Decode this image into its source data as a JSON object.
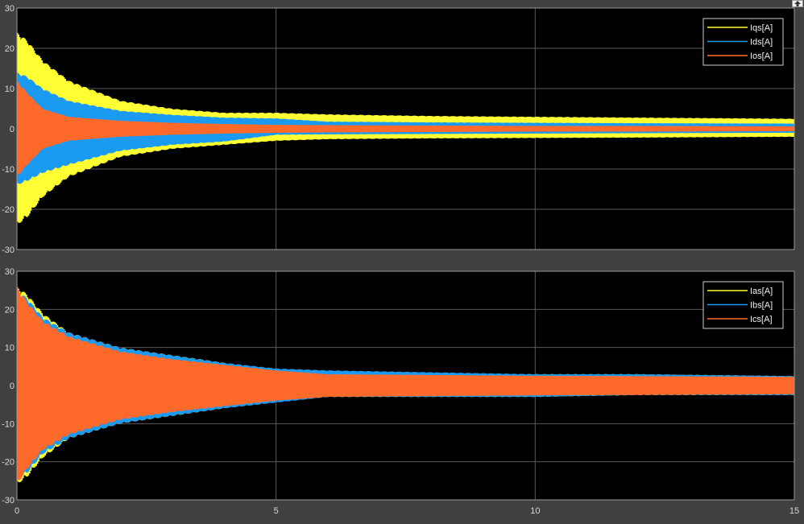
{
  "window": {
    "restore_button_icon": "restore-arrow-icon"
  },
  "colors": {
    "background": "#404040",
    "plot_bg": "#000000",
    "grid": "#5a5a5a",
    "axis_text": "#d9d9d9",
    "yellow": "#ffff33",
    "blue": "#1a9af0",
    "orange": "#ff6a2a"
  },
  "chart_data": [
    {
      "type": "line",
      "title": "",
      "xlabel": "",
      "ylabel": "",
      "xlim": [
        0,
        15
      ],
      "ylim": [
        -30,
        30
      ],
      "xticks": [
        0,
        5,
        10,
        15
      ],
      "yticks": [
        -30,
        -20,
        -10,
        0,
        10,
        20,
        30
      ],
      "xtick_labels": [
        "",
        "",
        "",
        ""
      ],
      "ytick_labels": [
        "-30",
        "-20",
        "-10",
        "0",
        "10",
        "20",
        "30"
      ],
      "grid": true,
      "legend_position": "top-right",
      "series": [
        {
          "name": "Iqs[A]",
          "color": "#ffff33",
          "envelope": {
            "t": [
              0,
              0.2,
              0.5,
              1,
              2,
              3,
              4,
              5,
              6,
              8,
              10,
              12,
              15
            ],
            "upper": [
              24,
              22,
              17,
              12,
              7,
              5,
              4,
              4,
              3.6,
              3.2,
              3,
              2.8,
              2.5
            ],
            "lower": [
              -24,
              -22,
              -17,
              -12,
              -7,
              -5,
              -4,
              -3,
              -2.6,
              -2.4,
              -2.3,
              -2.2,
              -2
            ]
          }
        },
        {
          "name": "Ids[A]",
          "color": "#1a9af0",
          "envelope": {
            "t": [
              0,
              0.2,
              0.5,
              1,
              2,
              3,
              4,
              5,
              6,
              8,
              10,
              12,
              15
            ],
            "upper": [
              14,
              13,
              10,
              7,
              4.5,
              3.5,
              2.8,
              2.6,
              1.8,
              1.6,
              1.5,
              1.4,
              1.3
            ],
            "lower": [
              -14,
              -13,
              -11,
              -9,
              -5.5,
              -4,
              -3.2,
              -1.5,
              -1.4,
              -1.3,
              -1.2,
              -1.1,
              -1
            ]
          }
        },
        {
          "name": "Ios[A]",
          "color": "#ff6a2a",
          "envelope": {
            "t": [
              0,
              0.2,
              0.5,
              1,
              2,
              3,
              4,
              5,
              6,
              8,
              10,
              12,
              15
            ],
            "upper": [
              12,
              9,
              5,
              3,
              2,
              1.5,
              1.2,
              1,
              0.9,
              0.8,
              0.7,
              0.7,
              0.6
            ],
            "lower": [
              -12,
              -9,
              -5,
              -3,
              -2,
              -1.5,
              -1.2,
              -1,
              -0.9,
              -0.8,
              -0.7,
              -0.7,
              -0.6
            ]
          }
        }
      ]
    },
    {
      "type": "line",
      "title": "",
      "xlabel": "",
      "ylabel": "",
      "xlim": [
        0,
        15
      ],
      "ylim": [
        -30,
        30
      ],
      "xticks": [
        0,
        5,
        10,
        15
      ],
      "yticks": [
        -30,
        -20,
        -10,
        0,
        10,
        20,
        30
      ],
      "xtick_labels": [
        "0",
        "5",
        "10",
        "15"
      ],
      "ytick_labels": [
        "-30",
        "-20",
        "-10",
        "0",
        "10",
        "20",
        "30"
      ],
      "grid": true,
      "legend_position": "top-right",
      "series": [
        {
          "name": "Ias[A]",
          "color": "#ffff33",
          "envelope": {
            "t": [
              0,
              0.2,
              0.5,
              1,
              2,
              3,
              4,
              5,
              6,
              8,
              10,
              12,
              15
            ],
            "upper": [
              26,
              24,
              19,
              14,
              10,
              8,
              6,
              4,
              3,
              3,
              3,
              3,
              2.5
            ],
            "lower": [
              -26,
              -24,
              -19,
              -14,
              -10,
              -8,
              -6,
              -4,
              -3,
              -3,
              -3,
              -2.5,
              -2.5
            ]
          }
        },
        {
          "name": "Ibs[A]",
          "color": "#1a9af0",
          "envelope": {
            "t": [
              0,
              0.2,
              0.5,
              1,
              2,
              3,
              4,
              5,
              6,
              8,
              10,
              12,
              15
            ],
            "upper": [
              25,
              23,
              18,
              14,
              10,
              8,
              6,
              4.5,
              4,
              3.5,
              3,
              3,
              2.5
            ],
            "lower": [
              -25,
              -23,
              -18,
              -14,
              -10,
              -8,
              -6,
              -4.5,
              -3,
              -3,
              -3,
              -2.5,
              -2.5
            ]
          }
        },
        {
          "name": "Ics[A]",
          "color": "#ff6a2a",
          "envelope": {
            "t": [
              0,
              0.2,
              0.5,
              1,
              2,
              3,
              4,
              5,
              6,
              8,
              10,
              12,
              15
            ],
            "upper": [
              26,
              22,
              17,
              13,
              9,
              7,
              5.5,
              4,
              3,
              2.8,
              2.6,
              2.5,
              2.3
            ],
            "lower": [
              -26,
              -22,
              -17,
              -13,
              -9,
              -7,
              -5.5,
              -4,
              -3,
              -2.8,
              -2.6,
              -2.5,
              -2.3
            ]
          }
        }
      ]
    }
  ]
}
